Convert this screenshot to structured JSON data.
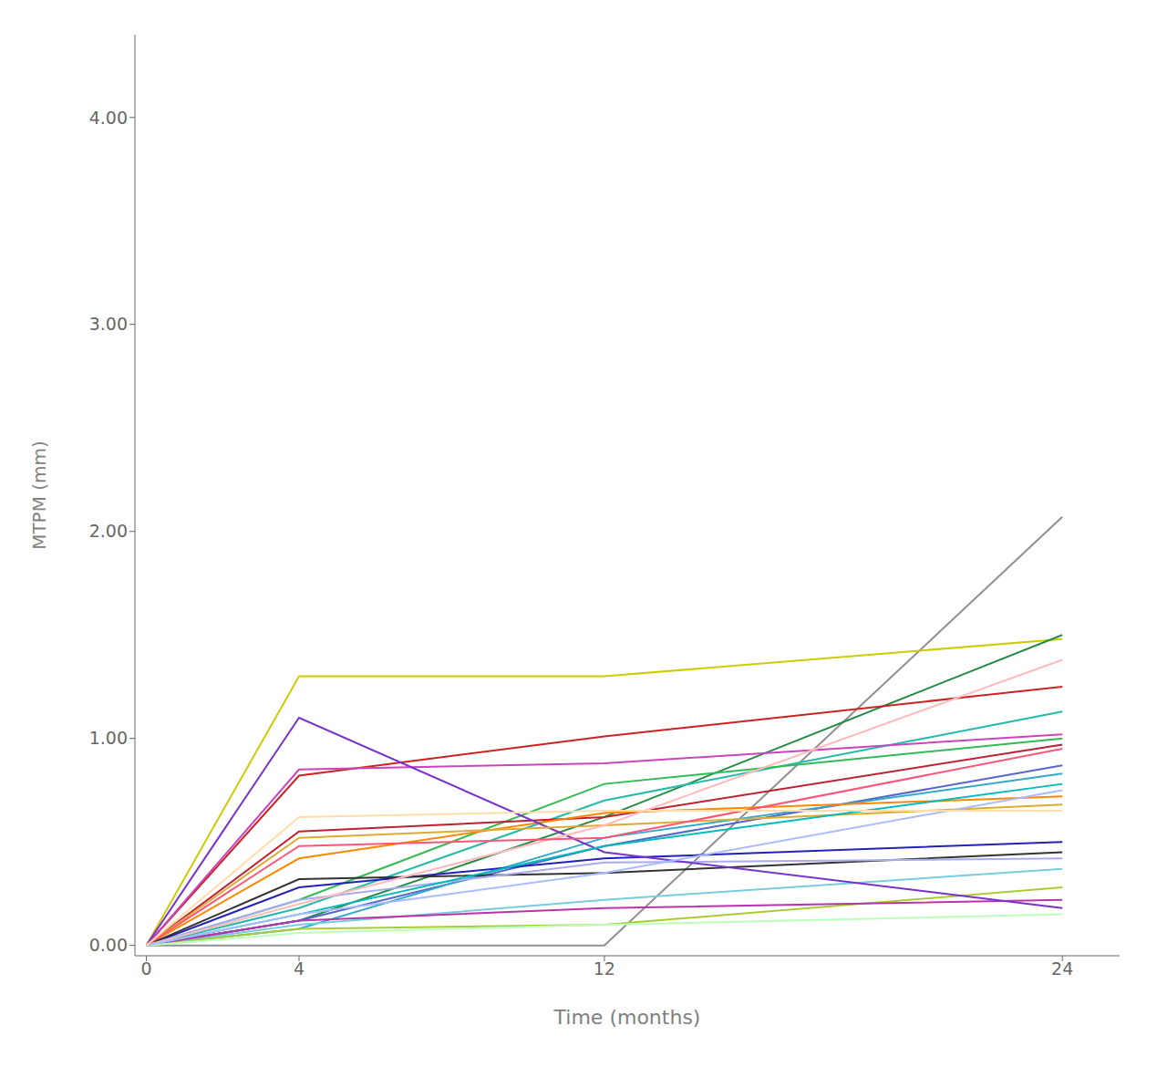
{
  "chart_data": {
    "type": "line",
    "xlabel": "Time (months)",
    "ylabel": "MTPM (mm)",
    "x": [
      0,
      4,
      12,
      24
    ],
    "xlim": [
      -0.3,
      25.5
    ],
    "ylim": [
      -0.05,
      4.4
    ],
    "xticks": [
      0,
      4,
      12,
      24
    ],
    "yticks": [
      {
        "value": 0.0,
        "label": "0.00"
      },
      {
        "value": 1.0,
        "label": "1.00"
      },
      {
        "value": 2.0,
        "label": "2.00"
      },
      {
        "value": 3.0,
        "label": "3.00"
      },
      {
        "value": 4.0,
        "label": "4.00"
      }
    ],
    "grid": false,
    "series": [
      {
        "color": "#909090",
        "values": [
          0,
          0.0,
          0.0,
          2.07
        ]
      },
      {
        "color": "#CCCC00",
        "values": [
          0,
          1.3,
          1.3,
          1.48
        ]
      },
      {
        "color": "#228B44",
        "values": [
          0,
          0.12,
          0.62,
          1.5
        ]
      },
      {
        "color": "#CC2222",
        "values": [
          0,
          0.82,
          1.01,
          1.25
        ]
      },
      {
        "color": "#22BBAA",
        "values": [
          0,
          0.18,
          0.7,
          1.13
        ]
      },
      {
        "color": "#CC44BB",
        "values": [
          0,
          0.85,
          0.88,
          1.02
        ]
      },
      {
        "color": "#33BB55",
        "values": [
          0,
          0.22,
          0.78,
          1.0
        ]
      },
      {
        "color": "#BB2233",
        "values": [
          0,
          0.55,
          0.62,
          0.97
        ]
      },
      {
        "color": "#5566CC",
        "values": [
          0,
          0.12,
          0.48,
          0.87
        ]
      },
      {
        "color": "#33AACC",
        "values": [
          0,
          0.08,
          0.52,
          0.83
        ]
      },
      {
        "color": "#FF8800",
        "values": [
          0,
          0.42,
          0.64,
          0.72
        ]
      },
      {
        "color": "#2222BB",
        "values": [
          0,
          0.28,
          0.42,
          0.5
        ]
      },
      {
        "color": "#333333",
        "values": [
          0,
          0.32,
          0.35,
          0.45
        ]
      },
      {
        "color": "#AAAAEE",
        "values": [
          0,
          0.22,
          0.4,
          0.42
        ]
      },
      {
        "color": "#77CCDD",
        "values": [
          0,
          0.1,
          0.22,
          0.37
        ]
      },
      {
        "color": "#AACC33",
        "values": [
          0,
          0.08,
          0.1,
          0.28
        ]
      },
      {
        "color": "#BB33AA",
        "values": [
          0,
          0.12,
          0.18,
          0.22
        ]
      },
      {
        "color": "#7733CC",
        "values": [
          0,
          1.1,
          0.45,
          0.18
        ]
      },
      {
        "color": "#DDAA33",
        "values": [
          0,
          0.52,
          0.58,
          0.68
        ]
      },
      {
        "color": "#00BBBB",
        "values": [
          0,
          0.15,
          0.48,
          0.78
        ]
      },
      {
        "color": "#FFBBBB",
        "values": [
          0,
          0.2,
          0.58,
          1.38
        ]
      },
      {
        "color": "#BBFFBB",
        "values": [
          0,
          0.06,
          0.1,
          0.15
        ]
      },
      {
        "color": "#FF5577",
        "values": [
          0,
          0.48,
          0.52,
          0.95
        ]
      },
      {
        "color": "#AABBFF",
        "values": [
          0,
          0.15,
          0.35,
          0.75
        ]
      },
      {
        "color": "#FFDDAA",
        "values": [
          0,
          0.62,
          0.65,
          0.65
        ]
      }
    ]
  }
}
